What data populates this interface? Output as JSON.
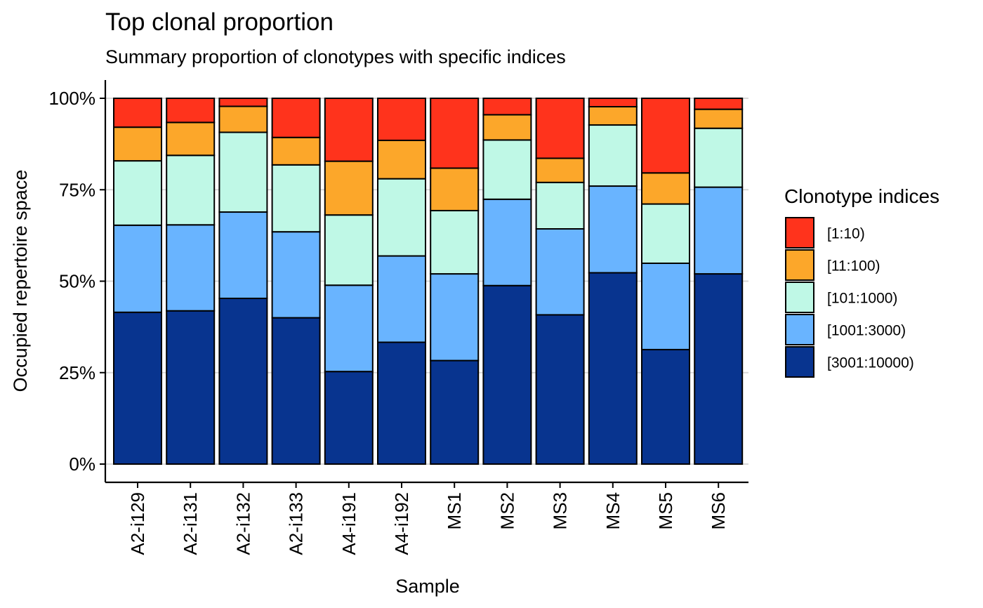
{
  "chart_data": {
    "type": "bar",
    "stacked": true,
    "title": "Top clonal proportion",
    "subtitle": "Summary proportion of clonotypes with specific indices",
    "xlabel": "Sample",
    "ylabel": "Occupied repertoire space",
    "ylim": [
      0,
      1
    ],
    "yticks": [
      0,
      0.25,
      0.5,
      0.75,
      1
    ],
    "ytick_labels": [
      "0%",
      "25%",
      "50%",
      "75%",
      "100%"
    ],
    "grid": "major y",
    "legend_title": "Clonotype indices",
    "legend_position": "right",
    "categories": [
      "A2-i129",
      "A2-i131",
      "A2-i132",
      "A2-i133",
      "A4-i191",
      "A4-i192",
      "MS1",
      "MS2",
      "MS3",
      "MS4",
      "MS5",
      "MS6"
    ],
    "series": [
      {
        "name": "[3001:10000)",
        "color": "#08348f",
        "values": [
          0.415,
          0.419,
          0.453,
          0.4,
          0.253,
          0.333,
          0.283,
          0.488,
          0.408,
          0.523,
          0.313,
          0.52
        ]
      },
      {
        "name": "[1001:3000)",
        "color": "#69b4ff",
        "values": [
          0.238,
          0.235,
          0.236,
          0.235,
          0.236,
          0.236,
          0.237,
          0.236,
          0.235,
          0.237,
          0.236,
          0.237
        ]
      },
      {
        "name": "[101:1000)",
        "color": "#bff8e6",
        "values": [
          0.176,
          0.19,
          0.218,
          0.183,
          0.192,
          0.211,
          0.173,
          0.162,
          0.127,
          0.167,
          0.162,
          0.161
        ]
      },
      {
        "name": "[11:100)",
        "color": "#fca72a",
        "values": [
          0.092,
          0.09,
          0.071,
          0.075,
          0.147,
          0.105,
          0.116,
          0.069,
          0.066,
          0.05,
          0.085,
          0.052
        ]
      },
      {
        "name": "[1:10)",
        "color": "#ff331c",
        "values": [
          0.079,
          0.066,
          0.022,
          0.107,
          0.172,
          0.115,
          0.191,
          0.045,
          0.164,
          0.023,
          0.204,
          0.03
        ]
      }
    ],
    "legend_order": [
      "[1:10)",
      "[11:100)",
      "[101:1000)",
      "[1001:3000)",
      "[3001:10000)"
    ]
  }
}
